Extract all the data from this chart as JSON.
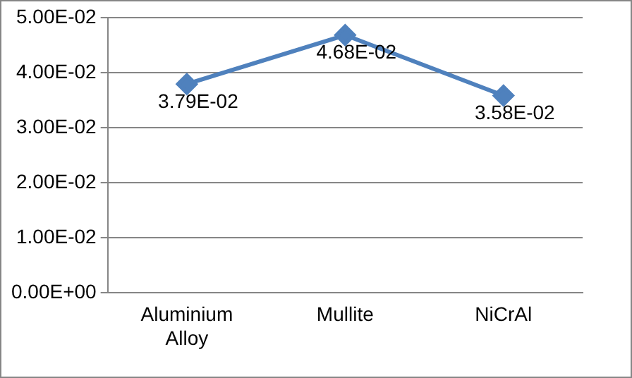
{
  "chart_data": {
    "type": "line",
    "categories": [
      "Aluminium Alloy",
      "Mullite",
      "NiCrAl"
    ],
    "series": [
      {
        "color": "#4f81bd",
        "values": [
          0.0379,
          0.0468,
          0.0358
        ],
        "value_labels": [
          "3.79E-02",
          "4.68E-02",
          "3.58E-02"
        ]
      }
    ],
    "ylim": [
      0,
      0.05
    ],
    "yticks": [
      {
        "value": 0,
        "label": "0.00E+00"
      },
      {
        "value": 0.01,
        "label": "1.00E-02"
      },
      {
        "value": 0.02,
        "label": "2.00E-02"
      },
      {
        "value": 0.03,
        "label": "3.00E-02"
      },
      {
        "value": 0.04,
        "label": "4.00E-02"
      },
      {
        "value": 0.05,
        "label": "5.00E-02"
      }
    ],
    "grid": "y",
    "legend": false,
    "marker": "diamond",
    "line_style": "solid"
  }
}
